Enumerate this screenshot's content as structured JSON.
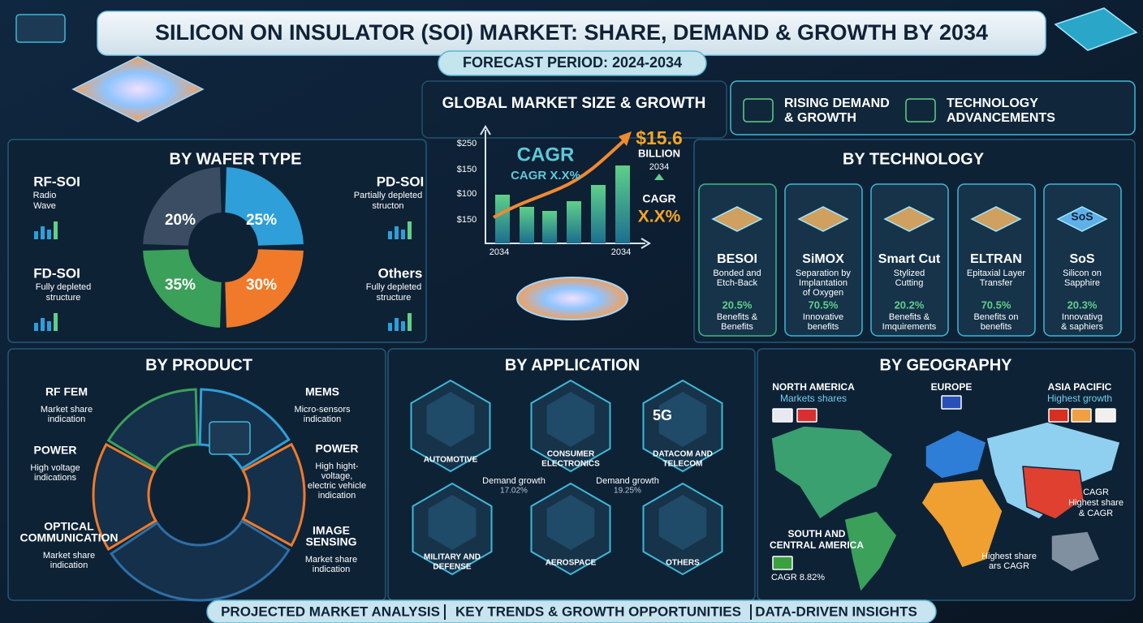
{
  "header": {
    "title": "SILICON ON INSULATOR (SOI) MARKET: SHARE, DEMAND & GROWTH BY 2034",
    "subtitle": "FORECAST PERIOD: 2024-2034"
  },
  "market_size": {
    "title": "GLOBAL MARKET SIZE & GROWTH",
    "axis_labels": [
      "$250",
      "$150",
      "$100",
      "$150"
    ],
    "x_labels": [
      "2034",
      "2034"
    ],
    "cagr_title": "CAGR",
    "cagr_sub": "CAGR X.X%",
    "value": "$15.6",
    "unit": "BILLION",
    "year": "2034",
    "cagr_label": "CAGR",
    "cagr_value": "X.X%"
  },
  "highlights": [
    {
      "lines": [
        "RISING DEMAND",
        "& GROWTH"
      ]
    },
    {
      "lines": [
        "TECHNOLOGY",
        "ADVANCEMENTS"
      ]
    }
  ],
  "wafer_type": {
    "title": "BY WAFER TYPE",
    "segments": [
      {
        "name": "RF-SOI",
        "description": [
          "Radio",
          "Wave"
        ],
        "share": "20%"
      },
      {
        "name": "PD-SOI",
        "description": [
          "Partially depleted",
          "structon"
        ],
        "share": "25%"
      },
      {
        "name": "FD-SOI",
        "description": [
          "Fully depleted",
          "structure"
        ],
        "share": "35%"
      },
      {
        "name": "Others",
        "description": [
          "Fully depleted",
          "structure"
        ],
        "share": "30%"
      }
    ]
  },
  "technology": {
    "title": "BY TECHNOLOGY",
    "cards": [
      {
        "name": "BESOI",
        "description": [
          "Bonded and",
          "Etch-Back"
        ],
        "share": "20.5%",
        "note": [
          "Benefits &",
          "Benefits"
        ]
      },
      {
        "name": "SiMOX",
        "description": [
          "Separation by",
          "Implantation",
          "of Oxygen"
        ],
        "share": "70.5%",
        "note": [
          "Innovative",
          "benefits"
        ]
      },
      {
        "name": "Smart Cut",
        "description": [
          "Stylized",
          "Cutting"
        ],
        "share": "20.2%",
        "note": [
          "Benefits &",
          "Imquirements"
        ]
      },
      {
        "name": "ELTRAN",
        "description": [
          "Epitaxial Layer",
          "Transfer"
        ],
        "share": "70.5%",
        "note": [
          "Benefits on",
          "benefits"
        ]
      },
      {
        "name": "SoS",
        "icon_label": "SoS",
        "description": [
          "Silicon on",
          "Sapphire"
        ],
        "share": "20.3%",
        "note": [
          "Innovativg",
          "& saphiers"
        ]
      }
    ]
  },
  "product": {
    "title": "BY PRODUCT",
    "items": [
      {
        "name": [
          "RF FEM"
        ],
        "description": [
          "Market share",
          "indication"
        ]
      },
      {
        "name": [
          "POWER"
        ],
        "description": [
          "High voltage",
          "indications"
        ]
      },
      {
        "name": [
          "OPTICAL",
          "COMMUNICATION"
        ],
        "description": [
          "Market share",
          "indication"
        ]
      },
      {
        "name": [
          "MEMS"
        ],
        "description": [
          "Micro-sensors",
          "indication"
        ]
      },
      {
        "name": [
          "POWER"
        ],
        "description": [
          "High hight-",
          "voltage,",
          "electric vehicle",
          "indication"
        ]
      },
      {
        "name": [
          "IMAGE",
          "SENSING"
        ],
        "description": [
          "Market share",
          "indication"
        ]
      }
    ]
  },
  "application": {
    "title": "BY APPLICATION",
    "items": [
      {
        "name": [
          "AUTOMOTIVE"
        ]
      },
      {
        "name": [
          "CONSUMER",
          "ELECTRONICS"
        ]
      },
      {
        "name": [
          "DATACOM AND",
          "TELECOM"
        ],
        "icon_label": "5G"
      },
      {
        "name": [
          "MILITARY AND",
          "DEFENSE"
        ]
      },
      {
        "name": [
          "AEROSPACE"
        ]
      },
      {
        "name": [
          "OTHERS"
        ]
      }
    ],
    "notes": [
      {
        "label": "Demand growth",
        "value": "17.02%"
      },
      {
        "label": "Demand growth",
        "value": "19.25%"
      }
    ]
  },
  "geography": {
    "title": "BY GEOGRAPHY",
    "regions": [
      {
        "name": [
          "NORTH AMERICA"
        ],
        "note": [
          "Markets shares"
        ]
      },
      {
        "name": [
          "EUROPE"
        ],
        "note": []
      },
      {
        "name": [
          "ASIA PACIFIC"
        ],
        "note": [
          "Highest growth"
        ]
      },
      {
        "name": [
          "SOUTH AND",
          "CENTRAL AMERICA"
        ],
        "note": [
          "CAGR 8.82%"
        ]
      }
    ],
    "callouts": [
      [
        "CAGR",
        "Highest share",
        "& CAGR"
      ],
      [
        "Highest share",
        "ars CAGR"
      ]
    ]
  },
  "footer": [
    "PROJECTED MARKET ANALYSIS",
    "KEY TRENDS & GROWTH OPPORTUNITIES",
    "DATA-DRIVEN INSIGHTS"
  ]
}
